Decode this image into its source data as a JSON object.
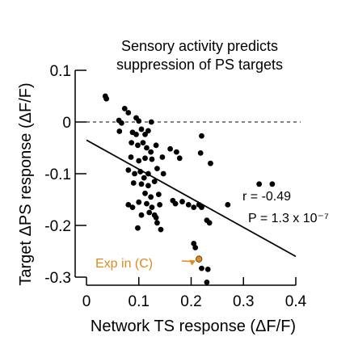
{
  "chart_data": {
    "type": "scatter",
    "title_lines": [
      "Sensory activity predicts",
      "suppression of PS targets"
    ],
    "xlabel": "Network TS response (ΔF/F)",
    "ylabel": "Target ΔPS response  (ΔF/F)",
    "xlim": [
      0,
      0.4
    ],
    "ylim": [
      -0.3,
      0.1
    ],
    "x_ticks": [
      0,
      0.1,
      0.2,
      0.3,
      0.4
    ],
    "x_tick_labels": [
      "0",
      "0.1",
      "0.2",
      "0.3",
      "0.4"
    ],
    "y_ticks": [
      0.1,
      0,
      -0.1,
      -0.2,
      -0.3
    ],
    "y_tick_labels": [
      "0.1",
      "0",
      "-0.1",
      "-0.2",
      "-0.3"
    ],
    "zero_line": true,
    "grid": false,
    "points": [
      {
        "x": 0.036,
        "y": 0.05
      },
      {
        "x": 0.038,
        "y": 0.045
      },
      {
        "x": 0.073,
        "y": 0.026
      },
      {
        "x": 0.08,
        "y": 0.018
      },
      {
        "x": 0.062,
        "y": 0.003
      },
      {
        "x": 0.067,
        "y": -0.002
      },
      {
        "x": 0.095,
        "y": 0.008
      },
      {
        "x": 0.1,
        "y": 0.002
      },
      {
        "x": 0.124,
        "y": 0.0
      },
      {
        "x": 0.063,
        "y": -0.018
      },
      {
        "x": 0.088,
        "y": -0.02
      },
      {
        "x": 0.095,
        "y": -0.024
      },
      {
        "x": 0.105,
        "y": -0.014
      },
      {
        "x": 0.118,
        "y": -0.017
      },
      {
        "x": 0.112,
        "y": -0.024
      },
      {
        "x": 0.086,
        "y": -0.04
      },
      {
        "x": 0.098,
        "y": -0.045
      },
      {
        "x": 0.108,
        "y": -0.04
      },
      {
        "x": 0.115,
        "y": -0.05
      },
      {
        "x": 0.123,
        "y": -0.058
      },
      {
        "x": 0.133,
        "y": -0.045
      },
      {
        "x": 0.085,
        "y": -0.068
      },
      {
        "x": 0.1,
        "y": -0.075
      },
      {
        "x": 0.112,
        "y": -0.07
      },
      {
        "x": 0.125,
        "y": -0.072
      },
      {
        "x": 0.145,
        "y": -0.068
      },
      {
        "x": 0.16,
        "y": -0.052
      },
      {
        "x": 0.172,
        "y": -0.058
      },
      {
        "x": 0.178,
        "y": -0.07
      },
      {
        "x": 0.08,
        "y": -0.093
      },
      {
        "x": 0.092,
        "y": -0.1
      },
      {
        "x": 0.103,
        "y": -0.096
      },
      {
        "x": 0.11,
        "y": -0.108
      },
      {
        "x": 0.118,
        "y": -0.1
      },
      {
        "x": 0.135,
        "y": -0.09
      },
      {
        "x": 0.147,
        "y": -0.1
      },
      {
        "x": 0.09,
        "y": -0.118
      },
      {
        "x": 0.105,
        "y": -0.12
      },
      {
        "x": 0.118,
        "y": -0.123
      },
      {
        "x": 0.13,
        "y": -0.115
      },
      {
        "x": 0.112,
        "y": -0.138
      },
      {
        "x": 0.123,
        "y": -0.145
      },
      {
        "x": 0.138,
        "y": -0.14
      },
      {
        "x": 0.08,
        "y": -0.16
      },
      {
        "x": 0.088,
        "y": -0.165
      },
      {
        "x": 0.1,
        "y": -0.155
      },
      {
        "x": 0.115,
        "y": -0.158
      },
      {
        "x": 0.125,
        "y": -0.165
      },
      {
        "x": 0.14,
        "y": -0.16
      },
      {
        "x": 0.105,
        "y": -0.18
      },
      {
        "x": 0.12,
        "y": -0.175
      },
      {
        "x": 0.13,
        "y": -0.18
      },
      {
        "x": 0.133,
        "y": -0.185
      },
      {
        "x": 0.165,
        "y": -0.152
      },
      {
        "x": 0.17,
        "y": -0.158
      },
      {
        "x": 0.183,
        "y": -0.154
      },
      {
        "x": 0.195,
        "y": -0.16
      },
      {
        "x": 0.205,
        "y": -0.165
      },
      {
        "x": 0.215,
        "y": -0.16
      },
      {
        "x": 0.22,
        "y": -0.165
      },
      {
        "x": 0.098,
        "y": -0.205
      },
      {
        "x": 0.135,
        "y": -0.195
      },
      {
        "x": 0.142,
        "y": -0.208
      },
      {
        "x": 0.23,
        "y": -0.19
      },
      {
        "x": 0.235,
        "y": -0.195
      },
      {
        "x": 0.218,
        "y": -0.06
      },
      {
        "x": 0.22,
        "y": -0.027
      },
      {
        "x": 0.237,
        "y": -0.08
      },
      {
        "x": 0.27,
        "y": -0.16
      },
      {
        "x": 0.33,
        "y": -0.12
      },
      {
        "x": 0.355,
        "y": -0.12
      },
      {
        "x": 0.205,
        "y": -0.235
      },
      {
        "x": 0.208,
        "y": -0.243
      },
      {
        "x": 0.22,
        "y": -0.283
      },
      {
        "x": 0.232,
        "y": -0.285
      },
      {
        "x": 0.23,
        "y": -0.31
      }
    ],
    "highlighted_point": {
      "x": 0.215,
      "y": -0.265,
      "label": "Exp in (C)",
      "color": "#e08a1e"
    },
    "fit_line": {
      "x": [
        0,
        0.4
      ],
      "y": [
        -0.035,
        -0.26
      ]
    },
    "stats": [
      "r = -0.49",
      "P = 1.3 x 10⁻⁷"
    ],
    "colors": {
      "points": "#000000",
      "highlight": "#e08a1e",
      "axes": "#000000"
    }
  }
}
